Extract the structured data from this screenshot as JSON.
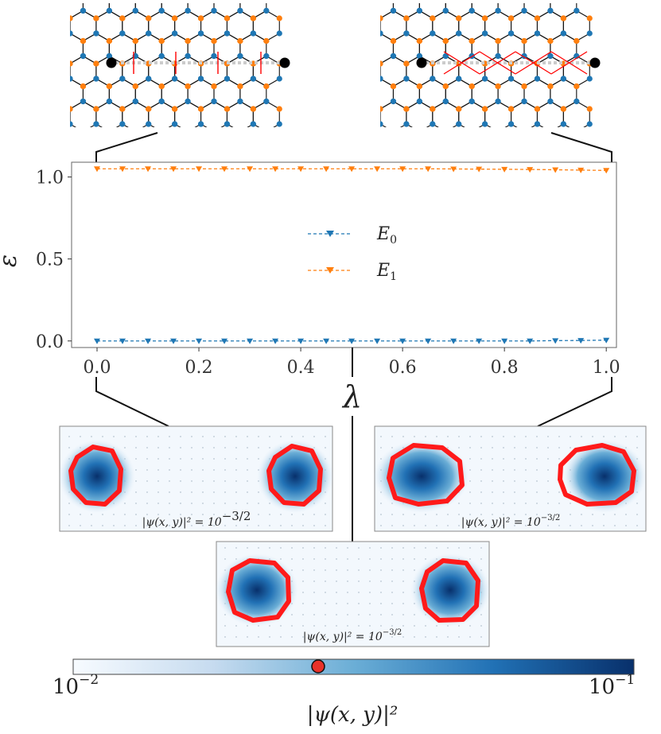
{
  "chart_data": {
    "type": "line",
    "title": "",
    "xlabel": "λ",
    "ylabel": "ε",
    "xlim": [
      -0.05,
      1.02
    ],
    "ylim": [
      -0.04,
      1.09
    ],
    "x_ticks": [
      "0.0",
      "0.2",
      "0.4",
      "0.6",
      "0.8",
      "1.0"
    ],
    "y_ticks": [
      "0.0",
      "0.5",
      "1.0"
    ],
    "grid": false,
    "legend_position": "center",
    "x": [
      0.0,
      0.05,
      0.1,
      0.15,
      0.2,
      0.25,
      0.3,
      0.35,
      0.4,
      0.45,
      0.5,
      0.55,
      0.6,
      0.65,
      0.7,
      0.75,
      0.8,
      0.85,
      0.9,
      0.95,
      1.0
    ],
    "series": [
      {
        "name": "E0",
        "color": "#1f77b4",
        "marker": "triangle-down",
        "line": "dashed",
        "values": [
          0.0,
          0.0,
          0.0,
          0.0,
          0.0,
          0.0,
          0.0,
          0.0,
          0.0,
          0.0,
          0.0,
          0.0,
          0.0,
          0.0,
          0.0,
          0.0,
          0.0,
          0.0,
          0.002,
          0.003,
          0.005
        ]
      },
      {
        "name": "E1",
        "color": "#ff7f0e",
        "marker": "triangle-down",
        "line": "dashed",
        "values": [
          1.05,
          1.05,
          1.05,
          1.05,
          1.05,
          1.05,
          1.05,
          1.05,
          1.05,
          1.05,
          1.05,
          1.05,
          1.05,
          1.05,
          1.049,
          1.048,
          1.047,
          1.046,
          1.044,
          1.042,
          1.04
        ]
      }
    ]
  },
  "legend": {
    "e0_main": "E",
    "e0_sub": "0",
    "e1_main": "E",
    "e1_sub": "1"
  },
  "density_panels": [
    {
      "id": "lambda-0",
      "caption": "|ψ(x, y)|² = 10",
      "exponent": "−3/2"
    },
    {
      "id": "lambda-1",
      "caption": "|ψ(x, y)|² = 10",
      "exponent": "−3/2"
    },
    {
      "id": "lambda-mid",
      "caption": "|ψ(x, y)|² = 10",
      "exponent": "−3/2"
    }
  ],
  "colorbar": {
    "label": "|ψ(x, y)|²",
    "min_base": "10",
    "min_exp": "−2",
    "max_base": "10",
    "max_exp": "−1",
    "scale": "log",
    "marker_value": 0.0316,
    "colors": [
      "#f7fbff",
      "#c6dbef",
      "#6baed6",
      "#2171b5",
      "#08306b"
    ],
    "marker_color": "#e8322a"
  },
  "lattice": {
    "site_colors": [
      "#1f77b4",
      "#ff7f0e"
    ],
    "defect_color": "#000000",
    "flux_bond_color": "#ff0000"
  }
}
